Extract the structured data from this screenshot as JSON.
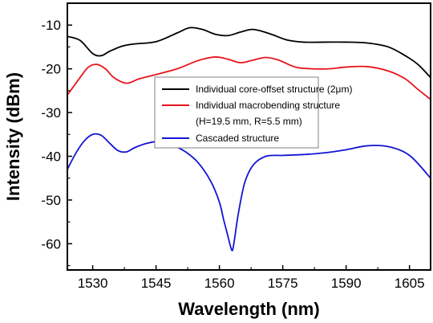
{
  "chart_data": {
    "type": "line",
    "title": "",
    "xlabel": "Wavelength (nm)",
    "ylabel": "Intensity (dBm)",
    "xlim": [
      1524,
      1610
    ],
    "ylim": [
      -66,
      -5
    ],
    "x_ticks": [
      1530,
      1545,
      1560,
      1575,
      1590,
      1605
    ],
    "y_ticks": [
      -10,
      -20,
      -30,
      -40,
      -50,
      -60
    ],
    "grid": false,
    "legend_placement": "center",
    "series": [
      {
        "name": "Individual core-offset structure (2μm)",
        "color": "#000000",
        "x": [
          1524,
          1527,
          1530,
          1532,
          1534,
          1537,
          1540,
          1545,
          1550,
          1553,
          1556,
          1559,
          1562,
          1565,
          1568,
          1572,
          1576,
          1580,
          1585,
          1590,
          1595,
          1600,
          1604,
          1607,
          1610
        ],
        "y": [
          -12.6,
          -13.5,
          -16.5,
          -17.0,
          -16.0,
          -14.8,
          -14.3,
          -13.8,
          -11.8,
          -10.6,
          -11.0,
          -12.1,
          -12.4,
          -11.6,
          -11.0,
          -12.0,
          -13.4,
          -13.9,
          -13.9,
          -13.9,
          -14.1,
          -15.0,
          -17.0,
          -19.0,
          -22.0
        ]
      },
      {
        "name": "Individual macrobending structure",
        "sublabel": "(H=19.5 mm, R=5.5 mm)",
        "color": "#e8141c",
        "x": [
          1524,
          1527,
          1529,
          1531,
          1533,
          1535,
          1538,
          1541,
          1545,
          1550,
          1555,
          1559,
          1562,
          1565,
          1568,
          1571,
          1574,
          1578,
          1582,
          1586,
          1590,
          1595,
          1600,
          1604,
          1607,
          1610
        ],
        "y": [
          -26.0,
          -22.0,
          -19.6,
          -19.0,
          -20.0,
          -22.0,
          -23.3,
          -22.3,
          -21.3,
          -20.0,
          -18.1,
          -17.3,
          -17.8,
          -18.6,
          -18.0,
          -17.4,
          -18.0,
          -19.6,
          -20.0,
          -20.0,
          -19.6,
          -19.5,
          -20.5,
          -22.3,
          -24.7,
          -27.0
        ]
      },
      {
        "name": "Cascaded structure",
        "color": "#1414d4",
        "x": [
          1524,
          1526,
          1528,
          1530,
          1532,
          1534,
          1536,
          1538,
          1540,
          1543,
          1546,
          1549,
          1552,
          1555,
          1558,
          1560,
          1561,
          1562,
          1562.6,
          1563.1,
          1563.6,
          1564.5,
          1566,
          1568,
          1571,
          1575,
          1580,
          1585,
          1590,
          1595,
          1600,
          1605,
          1610
        ],
        "y": [
          -43.0,
          -39.3,
          -36.5,
          -35.0,
          -35.2,
          -37.0,
          -38.7,
          -39.0,
          -38.0,
          -37.0,
          -36.6,
          -37.5,
          -39.0,
          -41.5,
          -45.8,
          -50.5,
          -54.5,
          -58.2,
          -60.5,
          -61.5,
          -58.8,
          -53.0,
          -46.0,
          -42.0,
          -40.0,
          -39.8,
          -39.6,
          -39.2,
          -38.5,
          -37.6,
          -37.8,
          -39.8,
          -45.0
        ]
      }
    ]
  }
}
